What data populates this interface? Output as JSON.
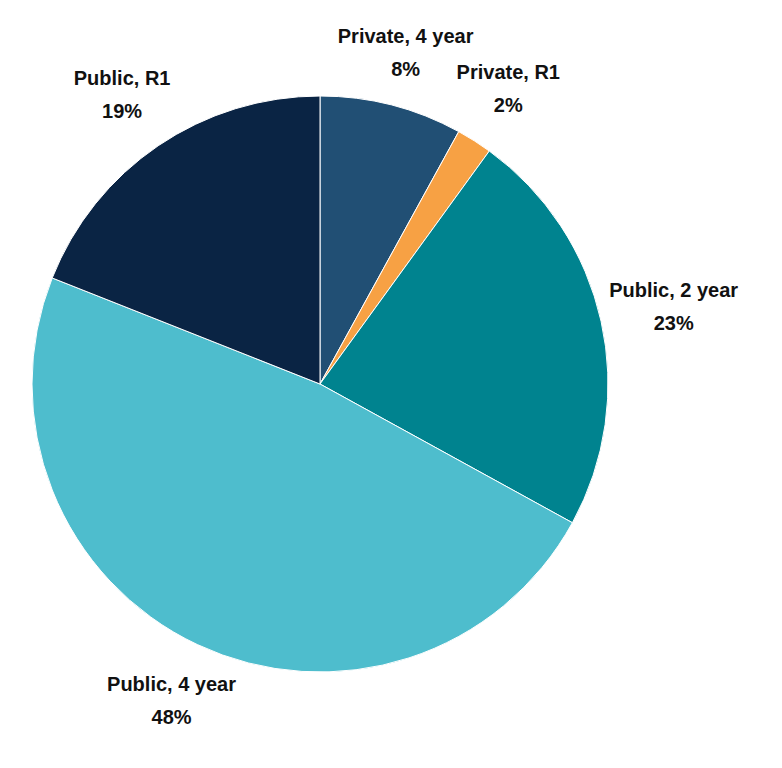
{
  "chart_data": {
    "type": "pie",
    "categories": [
      "Private, 4 year",
      "Private, R1",
      "Public, 2 year",
      "Public, 4 year",
      "Public, R1"
    ],
    "values": [
      8,
      2,
      23,
      48,
      19
    ],
    "value_labels": [
      "8%",
      "2%",
      "23%",
      "48%",
      "19%"
    ],
    "colors": [
      "#214f74",
      "#f7a144",
      "#00838f",
      "#4ebdcd",
      "#0a2444"
    ],
    "data_labels": true
  }
}
